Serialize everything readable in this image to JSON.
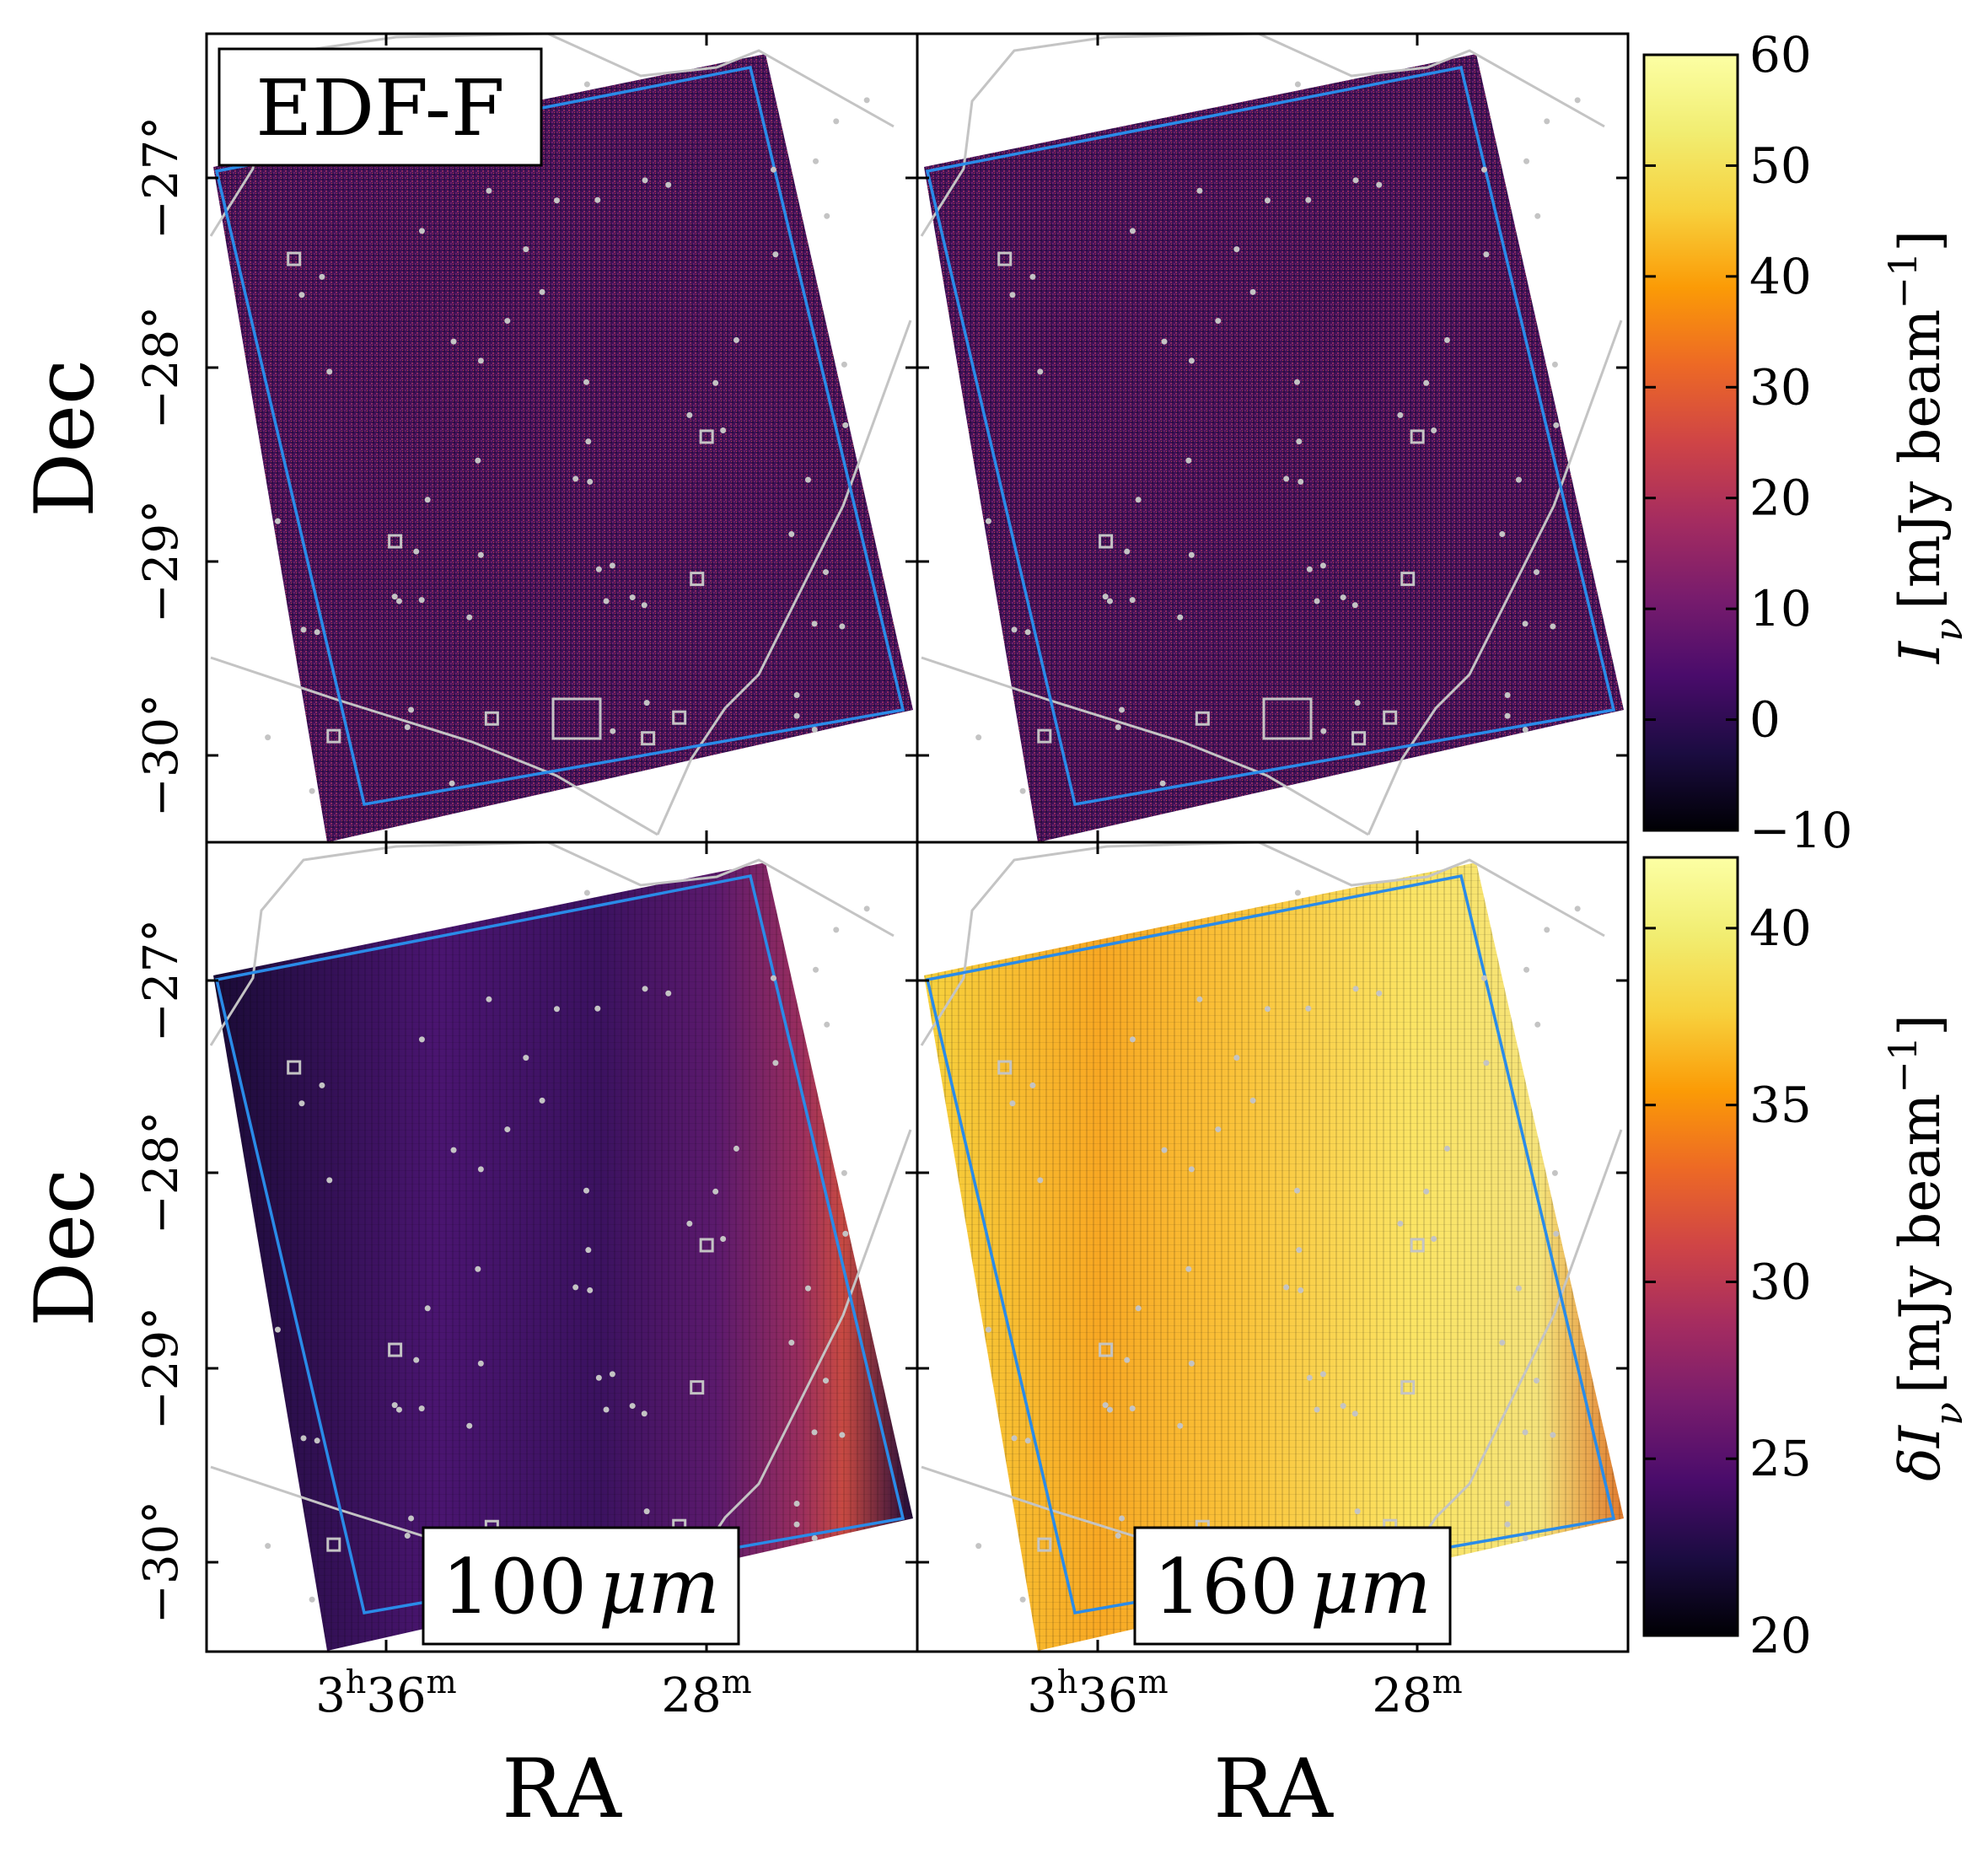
{
  "figure": {
    "field_label": "EDF-F",
    "panels": [
      {
        "id": "top-left",
        "band": "100",
        "quantity": "intensity"
      },
      {
        "id": "top-right",
        "band": "160",
        "quantity": "intensity"
      },
      {
        "id": "bottom-left",
        "band": "100",
        "quantity": "uncertainty"
      },
      {
        "id": "bottom-right",
        "band": "160",
        "quantity": "uncertainty"
      }
    ],
    "band_labels": [
      {
        "value": "100",
        "unit": "μm"
      },
      {
        "value": "160",
        "unit": "μm"
      }
    ],
    "colors": {
      "footprint_outline": "#2a8be8",
      "contours": "#c4c4c4",
      "frame": "#000000"
    },
    "colormap": "inferno"
  },
  "chart_data": {
    "type": "heatmap",
    "axes": {
      "xlabel": "RA",
      "ylabel": "Dec",
      "x_ticks": [
        {
          "hour": "3",
          "h": "h",
          "min": "36",
          "m": "m"
        },
        {
          "hour": "",
          "h": "",
          "min": "28",
          "m": "m"
        }
      ],
      "y_ticks": [
        "−27°",
        "−28°",
        "−29°",
        "−30°"
      ],
      "dec_values": [
        -27,
        -28,
        -29,
        -30
      ]
    },
    "colorbars": [
      {
        "name": "intensity",
        "label_symbol": "I",
        "label_sub": "ν",
        "label_unit": "mJy beam",
        "label_exp": "−1",
        "range": [
          -10,
          60
        ],
        "ticks": [
          "−10",
          "0",
          "10",
          "20",
          "30",
          "40",
          "50",
          "60"
        ],
        "tick_values": [
          -10,
          0,
          10,
          20,
          30,
          40,
          50,
          60
        ]
      },
      {
        "name": "uncertainty",
        "label_prefix": "δ",
        "label_symbol": "I",
        "label_sub": "ν",
        "label_unit": "mJy beam",
        "label_exp": "−1",
        "range": [
          20,
          42
        ],
        "ticks": [
          "20",
          "25",
          "30",
          "35",
          "40"
        ],
        "tick_values": [
          20,
          25,
          30,
          35,
          40
        ]
      }
    ]
  }
}
